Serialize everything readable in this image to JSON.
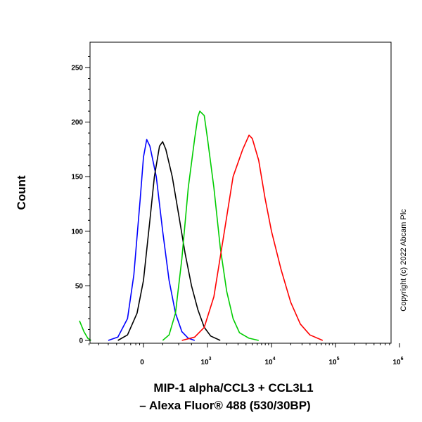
{
  "chart_data": {
    "type": "line",
    "title": "",
    "ylabel": "Count",
    "xlabel": [
      "MIP-1 alpha/CCL3  + CCL3L1",
      "– Alexa Fluor® 488 (530/30BP)"
    ],
    "x_scale": "biexponential (log-like, 10^0–10^6)",
    "xtick_labels": [
      "0",
      "10",
      "10",
      "10",
      "10"
    ],
    "xtick_exponents": [
      "",
      "3",
      "4",
      "5",
      "6"
    ],
    "ytick_labels": [
      "0",
      "50",
      "100",
      "150",
      "200",
      "250"
    ],
    "ylim": [
      0,
      270
    ],
    "copyright": "Copyright (c) 2022 Abcam Plc",
    "grid": false,
    "legend": "none",
    "series": [
      {
        "color": "#0000ff",
        "points": [
          [
            -0.55,
            0
          ],
          [
            -0.4,
            3
          ],
          [
            -0.25,
            20
          ],
          [
            -0.15,
            60
          ],
          [
            -0.05,
            130
          ],
          [
            0.0,
            168
          ],
          [
            0.05,
            184
          ],
          [
            0.1,
            178
          ],
          [
            0.2,
            150
          ],
          [
            0.3,
            100
          ],
          [
            0.4,
            55
          ],
          [
            0.5,
            25
          ],
          [
            0.6,
            8
          ],
          [
            0.7,
            2
          ],
          [
            0.8,
            0
          ]
        ]
      },
      {
        "color": "#000000",
        "points": [
          [
            -0.4,
            0
          ],
          [
            -0.25,
            5
          ],
          [
            -0.1,
            25
          ],
          [
            0.0,
            55
          ],
          [
            0.1,
            110
          ],
          [
            0.17,
            150
          ],
          [
            0.25,
            178
          ],
          [
            0.3,
            182
          ],
          [
            0.35,
            175
          ],
          [
            0.45,
            150
          ],
          [
            0.55,
            115
          ],
          [
            0.65,
            80
          ],
          [
            0.75,
            50
          ],
          [
            0.85,
            28
          ],
          [
            0.95,
            12
          ],
          [
            1.05,
            4
          ],
          [
            1.2,
            0
          ]
        ]
      },
      {
        "color": "#00cc00",
        "points": [
          [
            0.3,
            0
          ],
          [
            0.4,
            5
          ],
          [
            0.5,
            25
          ],
          [
            0.6,
            75
          ],
          [
            0.7,
            140
          ],
          [
            0.8,
            185
          ],
          [
            0.85,
            205
          ],
          [
            0.88,
            210
          ],
          [
            0.95,
            206
          ],
          [
            1.0,
            185
          ],
          [
            1.1,
            140
          ],
          [
            1.2,
            85
          ],
          [
            1.3,
            45
          ],
          [
            1.4,
            20
          ],
          [
            1.5,
            7
          ],
          [
            1.65,
            2
          ],
          [
            1.8,
            0
          ]
        ]
      },
      {
        "color": "#ff0000",
        "points": [
          [
            0.6,
            0
          ],
          [
            0.8,
            3
          ],
          [
            0.95,
            12
          ],
          [
            1.1,
            40
          ],
          [
            1.25,
            95
          ],
          [
            1.4,
            150
          ],
          [
            1.55,
            175
          ],
          [
            1.65,
            188
          ],
          [
            1.7,
            185
          ],
          [
            1.8,
            165
          ],
          [
            1.9,
            130
          ],
          [
            2.0,
            100
          ],
          [
            2.15,
            65
          ],
          [
            2.3,
            35
          ],
          [
            2.45,
            15
          ],
          [
            2.6,
            5
          ],
          [
            2.8,
            0
          ]
        ]
      },
      {
        "color": "#00cc00",
        "points": [
          [
            -1.0,
            18
          ],
          [
            -0.93,
            8
          ],
          [
            -0.87,
            2
          ],
          [
            -0.82,
            0
          ]
        ]
      }
    ]
  }
}
